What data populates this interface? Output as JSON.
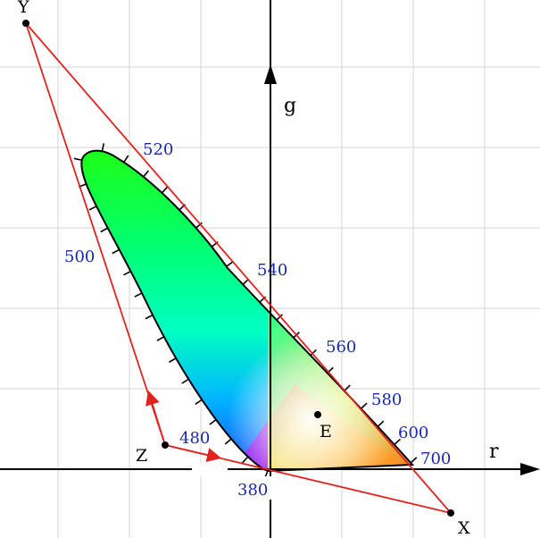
{
  "diagram": {
    "axes": {
      "x_label": "r",
      "y_label": "g"
    },
    "points": {
      "X": "X",
      "Y": "Y",
      "Z": "Z",
      "E": "E"
    },
    "wavelength_labels": [
      "380",
      "480",
      "500",
      "520",
      "540",
      "560",
      "580",
      "600",
      "700"
    ],
    "colors": {
      "grid": "#d4d4d4",
      "triangle": "#e0231f",
      "axis": "#000000",
      "label_text": "#1a2aa8",
      "locus_outline": "#000000"
    }
  }
}
